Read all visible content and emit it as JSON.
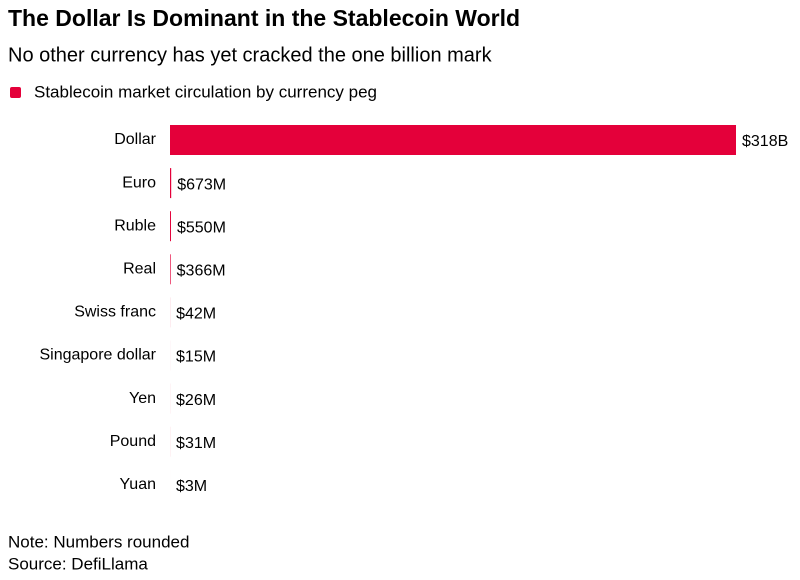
{
  "chart_data": {
    "type": "hbar",
    "title": "The Dollar Is Dominant in the Stablecoin World",
    "subtitle": "No other currency has yet cracked the one billion mark",
    "categories": [
      "Dollar",
      "Euro",
      "Ruble",
      "Real",
      "Swiss franc",
      "Singapore dollar",
      "Yen",
      "Pound",
      "Yuan"
    ],
    "series": [
      {
        "name": "Stablecoin market circulation by currency peg",
        "color": "#e4003a",
        "values": [
          318000000000,
          673000000,
          550000000,
          366000000,
          42000000,
          15000000,
          26000000,
          31000000,
          3000000
        ],
        "value_labels": [
          "$318B",
          "$673M",
          "$550M",
          "$366M",
          "$42M",
          "$15M",
          "$26M",
          "$31M",
          "$3M"
        ]
      }
    ],
    "xlim": [
      0,
      318000000000
    ],
    "notes": [
      "Note: Numbers rounded",
      "Source: DefiLlama"
    ]
  }
}
